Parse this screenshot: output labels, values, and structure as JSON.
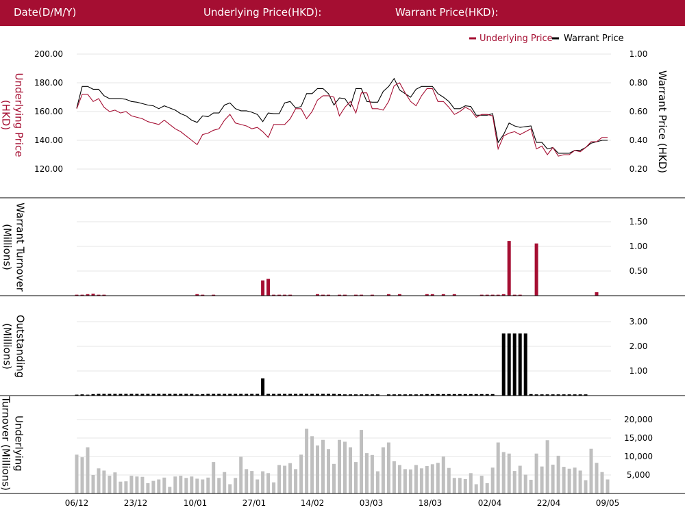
{
  "header": {
    "date_label": "Date(D/M/Y)",
    "underlying_label": "Underlying Price(HKD):",
    "warrant_label": "Warrant Price(HKD):"
  },
  "colors": {
    "header_bg": "#a50e32",
    "underlying": "#a50e32",
    "warrant": "#000000",
    "underlying_turnover": "#bfbfbf"
  },
  "chart_data": [
    {
      "type": "line",
      "legend": [
        "Underlying Price",
        "Warrant Price"
      ],
      "legend_position": "top-right",
      "ylabel": "Underlying Price (HKD)",
      "y2label": "Warrant  Price (HKD)",
      "yticks": [
        "200.00",
        "180.00",
        "160.00",
        "140.00",
        "120.00"
      ],
      "y2ticks": [
        "1.00",
        "0.80",
        "0.60",
        "0.40",
        "0.20"
      ],
      "ylim": [
        110,
        205
      ],
      "y2lim": [
        0.15,
        1.025
      ],
      "grid": true,
      "xticks": [
        "06/12",
        "23/12",
        "10/01",
        "27/01",
        "14/02",
        "03/03",
        "18/03",
        "02/04",
        "22/04",
        "09/05"
      ],
      "series": [
        {
          "name": "Underlying Price",
          "axis": "left",
          "values": [
            162,
            172,
            172,
            167,
            169,
            163,
            160,
            161,
            159,
            160,
            157,
            156,
            155,
            153,
            152,
            151,
            154,
            151,
            148,
            146,
            143,
            140,
            137,
            144,
            145,
            147,
            148,
            154,
            158,
            152,
            151,
            150,
            148,
            149,
            146,
            142,
            151,
            151,
            151,
            155,
            162,
            162,
            155,
            160,
            168,
            171,
            171,
            170,
            157,
            163,
            167,
            159,
            173,
            173,
            162,
            162,
            161,
            167,
            178,
            180,
            173,
            167,
            164,
            171,
            176,
            176,
            167,
            167,
            163,
            158,
            160,
            163,
            161,
            156,
            158,
            158,
            157,
            134,
            143,
            145,
            146,
            144,
            146,
            148,
            134,
            136,
            130,
            135,
            129,
            130,
            130,
            133,
            132,
            135,
            139,
            139,
            142,
            142
          ]
        },
        {
          "name": "Warrant Price",
          "axis": "right",
          "values": [
            0.625,
            0.775,
            0.775,
            0.755,
            0.755,
            0.71,
            0.69,
            0.69,
            0.69,
            0.685,
            0.67,
            0.665,
            0.655,
            0.645,
            0.64,
            0.62,
            0.64,
            0.625,
            0.61,
            0.585,
            0.57,
            0.54,
            0.525,
            0.57,
            0.565,
            0.59,
            0.59,
            0.645,
            0.66,
            0.62,
            0.605,
            0.605,
            0.595,
            0.58,
            0.53,
            0.59,
            0.585,
            0.585,
            0.66,
            0.67,
            0.625,
            0.635,
            0.725,
            0.725,
            0.76,
            0.76,
            0.725,
            0.645,
            0.695,
            0.69,
            0.635,
            0.76,
            0.76,
            0.67,
            0.665,
            0.665,
            0.74,
            0.775,
            0.83,
            0.75,
            0.725,
            0.7,
            0.755,
            0.775,
            0.775,
            0.775,
            0.725,
            0.7,
            0.67,
            0.62,
            0.62,
            0.64,
            0.635,
            0.575,
            0.575,
            0.575,
            0.585,
            0.385,
            0.44,
            0.52,
            0.5,
            0.49,
            0.495,
            0.5,
            0.385,
            0.385,
            0.34,
            0.35,
            0.31,
            0.31,
            0.31,
            0.33,
            0.33,
            0.35,
            0.38,
            0.39,
            0.4,
            0.4
          ]
        }
      ]
    },
    {
      "type": "bar",
      "ylabel": "Warrant  Turnover (Millions)",
      "yticks": [
        "1.50",
        "1.00",
        "0.50"
      ],
      "ylim": [
        0,
        1.9
      ],
      "grid": true,
      "series": [
        {
          "name": "Warrant Turnover",
          "values": [
            0.02,
            0.02,
            0.03,
            0.04,
            0.02,
            0.02,
            0,
            0,
            0,
            0,
            0,
            0,
            0,
            0,
            0,
            0,
            0,
            0,
            0,
            0,
            0,
            0,
            0.03,
            0.02,
            0,
            0.02,
            0,
            0,
            0,
            0,
            0,
            0,
            0,
            0,
            0.31,
            0.34,
            0.02,
            0.02,
            0.02,
            0.02,
            0,
            0,
            0,
            0,
            0.03,
            0.02,
            0.02,
            0,
            0.02,
            0.02,
            0,
            0.02,
            0.02,
            0,
            0.02,
            0,
            0,
            0.03,
            0,
            0.03,
            0,
            0,
            0,
            0,
            0.03,
            0.03,
            0,
            0.03,
            0,
            0.03,
            0,
            0,
            0,
            0,
            0.02,
            0.02,
            0.02,
            0.02,
            0.03,
            1.11,
            0.02,
            0.02,
            0,
            0,
            1.06,
            0,
            0,
            0,
            0,
            0,
            0,
            0,
            0,
            0,
            0,
            0.07,
            0,
            0
          ]
        }
      ]
    },
    {
      "type": "bar",
      "ylabel": "Outstanding (Millions)",
      "yticks": [
        "3.00",
        "2.00",
        "1.00"
      ],
      "ylim": [
        0,
        3.6
      ],
      "grid": true,
      "series": [
        {
          "name": "Outstanding",
          "values": [
            0.04,
            0.05,
            0.04,
            0.06,
            0.07,
            0.07,
            0.07,
            0.07,
            0.07,
            0.07,
            0.07,
            0.07,
            0.07,
            0.07,
            0.07,
            0.07,
            0.07,
            0.07,
            0.07,
            0.07,
            0.07,
            0.07,
            0.05,
            0.06,
            0.07,
            0.07,
            0.07,
            0.07,
            0.07,
            0.07,
            0.07,
            0.07,
            0.07,
            0.07,
            0.7,
            0.07,
            0.07,
            0.07,
            0.07,
            0.07,
            0.07,
            0.07,
            0.07,
            0.07,
            0.07,
            0.07,
            0.07,
            0.07,
            0.06,
            0.05,
            0.05,
            0.05,
            0.05,
            0.05,
            0.05,
            0.05,
            0,
            0.05,
            0.05,
            0.05,
            0.05,
            0.05,
            0.05,
            0.05,
            0.06,
            0.06,
            0.06,
            0.06,
            0.06,
            0.06,
            0.06,
            0.06,
            0.06,
            0.06,
            0.06,
            0.06,
            0.06,
            0,
            2.52,
            2.52,
            2.52,
            2.52,
            2.52,
            0.06,
            0.05,
            0.05,
            0.05,
            0.05,
            0.05,
            0.05,
            0.05,
            0.05,
            0.05,
            0.05,
            0,
            0,
            0,
            0
          ]
        }
      ]
    },
    {
      "type": "bar",
      "ylabel": "Underlying Turnover (Millions)",
      "yticks": [
        "20,000",
        "15,000",
        "10,000",
        "5,000"
      ],
      "ylim": [
        0,
        22000
      ],
      "grid": true,
      "series": [
        {
          "name": "Underlying Turnover",
          "values": [
            10500,
            9800,
            12500,
            5000,
            6800,
            6200,
            4800,
            5700,
            3200,
            3300,
            4800,
            4600,
            4500,
            2800,
            3400,
            3800,
            4300,
            1800,
            4600,
            4800,
            4200,
            4600,
            4000,
            3800,
            4300,
            8500,
            4200,
            5800,
            2500,
            4200,
            9900,
            6600,
            6100,
            3800,
            6000,
            5500,
            3000,
            7700,
            7500,
            8200,
            6600,
            10500,
            17500,
            15500,
            13000,
            14500,
            12000,
            8000,
            14500,
            14000,
            12500,
            8500,
            17200,
            10900,
            10400,
            6000,
            12500,
            13800,
            8700,
            7700,
            6600,
            6500,
            7700,
            6800,
            7400,
            7900,
            8300,
            10000,
            6900,
            4200,
            4200,
            3900,
            5500,
            2500,
            4800,
            2800,
            7000,
            13800,
            11200,
            10800,
            6100,
            7500,
            5100,
            3700,
            10800,
            7300,
            14400,
            7800,
            10200,
            7200,
            6700,
            7000,
            6200,
            3600,
            12100,
            8300,
            5800,
            3800
          ]
        }
      ]
    }
  ]
}
